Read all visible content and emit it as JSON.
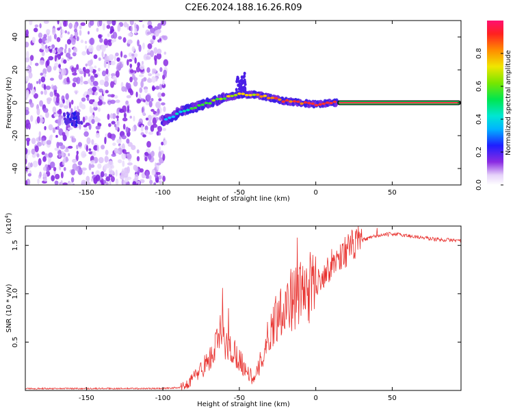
{
  "title": "C2E6.2024.188.16.26.R09",
  "chart_data": [
    {
      "type": "heatmap",
      "name": "spectrogram",
      "xlabel": "Height of straight line (km)",
      "ylabel": "Frequency (Hz)",
      "xlim": [
        -190,
        95
      ],
      "ylim": [
        -50,
        50
      ],
      "xticks": [
        -150,
        -100,
        -50,
        0,
        50
      ],
      "xtick_labels": [
        "-150",
        "-100",
        "-50",
        "0",
        "50"
      ],
      "yticks": [
        -40,
        -20,
        0,
        20,
        40
      ],
      "ytick_labels": [
        "-40",
        "-20",
        "0",
        "20",
        "40"
      ],
      "colorbar": {
        "label": "Normalized spectral amplitude",
        "range": [
          0.0,
          1.0
        ],
        "ticks": [
          0.0,
          0.2,
          0.4,
          0.6,
          0.8
        ],
        "tick_labels": [
          "0.0",
          "0.2",
          "0.4",
          "0.6",
          "0.8"
        ]
      },
      "signal_track": [
        {
          "x": -100,
          "y": -11
        },
        {
          "x": -95,
          "y": -9
        },
        {
          "x": -90,
          "y": -6
        },
        {
          "x": -80,
          "y": -3
        },
        {
          "x": -70,
          "y": 0
        },
        {
          "x": -60,
          "y": 3
        },
        {
          "x": -50,
          "y": 5
        },
        {
          "x": -40,
          "y": 5
        },
        {
          "x": -30,
          "y": 3
        },
        {
          "x": -20,
          "y": 1
        },
        {
          "x": -10,
          "y": 0
        },
        {
          "x": 0,
          "y": -1
        },
        {
          "x": 10,
          "y": 0
        },
        {
          "x": 15,
          "y": 0
        },
        {
          "x": 95,
          "y": 0
        }
      ]
    },
    {
      "type": "line",
      "name": "snr",
      "xlabel": "Height of straight line (km)",
      "ylabel": "SNR (10 * v/v)",
      "multiplier": "(x10",
      "multiplier_exp": "4",
      "multiplier_close": ")",
      "xlim": [
        -190,
        95
      ],
      "ylim": [
        0,
        1.7
      ],
      "xticks": [
        -150,
        -100,
        -50,
        0,
        50
      ],
      "xtick_labels": [
        "-150",
        "-100",
        "-50",
        "0",
        "50"
      ],
      "yticks": [
        0.5,
        1.0,
        1.5
      ],
      "ytick_labels": [
        "0.5",
        "1.0",
        "1.5"
      ],
      "color": "#e8322f",
      "envelope": [
        {
          "x": -190,
          "y": 0.02
        },
        {
          "x": -100,
          "y": 0.02
        },
        {
          "x": -90,
          "y": 0.03
        },
        {
          "x": -85,
          "y": 0.05
        },
        {
          "x": -75,
          "y": 0.22
        },
        {
          "x": -68,
          "y": 0.35
        },
        {
          "x": -62,
          "y": 0.6
        },
        {
          "x": -58,
          "y": 0.45
        },
        {
          "x": -52,
          "y": 0.38
        },
        {
          "x": -45,
          "y": 0.2
        },
        {
          "x": -40,
          "y": 0.1
        },
        {
          "x": -35,
          "y": 0.35
        },
        {
          "x": -30,
          "y": 0.6
        },
        {
          "x": -25,
          "y": 0.8
        },
        {
          "x": -20,
          "y": 0.9
        },
        {
          "x": -10,
          "y": 1.0
        },
        {
          "x": 0,
          "y": 1.1
        },
        {
          "x": 10,
          "y": 1.3
        },
        {
          "x": 20,
          "y": 1.45
        },
        {
          "x": 30,
          "y": 1.55
        },
        {
          "x": 40,
          "y": 1.6
        },
        {
          "x": 50,
          "y": 1.62
        },
        {
          "x": 60,
          "y": 1.6
        },
        {
          "x": 70,
          "y": 1.58
        },
        {
          "x": 80,
          "y": 1.56
        },
        {
          "x": 95,
          "y": 1.55
        }
      ],
      "peaks": [
        {
          "x": -61,
          "y": 1.06
        },
        {
          "x": -57,
          "y": 0.85
        },
        {
          "x": -12,
          "y": 1.58
        },
        {
          "x": 40,
          "y": 1.68
        }
      ]
    }
  ]
}
